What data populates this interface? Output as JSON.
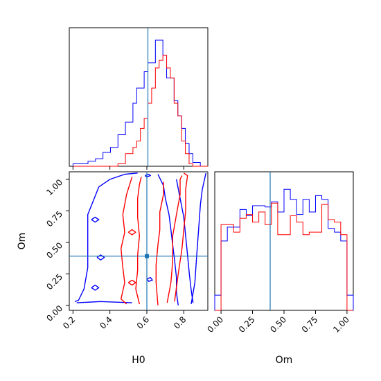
{
  "chart_data": {
    "type": "corner",
    "truth": {
      "H0": 0.6,
      "Om": 0.39
    },
    "colors": {
      "blue": "#0000ff",
      "red": "#ff0000",
      "truth": "#1f77b4"
    },
    "panels": {
      "h0_hist": {
        "type": "histogram",
        "xlim": [
          0.18,
          0.92
        ],
        "bin_edges": [
          0.2,
          0.24,
          0.28,
          0.32,
          0.36,
          0.4,
          0.44,
          0.48,
          0.52,
          0.54,
          0.56,
          0.58,
          0.6,
          0.62,
          0.64,
          0.66,
          0.68,
          0.7,
          0.72,
          0.74,
          0.76,
          0.78,
          0.8,
          0.82,
          0.84,
          0.88,
          0.92
        ],
        "series": [
          {
            "color": "blue",
            "counts": [
              0.02,
              0.02,
              0.04,
              0.06,
              0.11,
              0.15,
              0.25,
              0.35,
              0.5,
              0.62,
              0.62,
              0.75,
              0.82,
              0.82,
              1.0,
              1.0,
              0.88,
              0.7,
              0.7,
              0.52,
              0.4,
              0.3,
              0.18,
              0.1,
              0.03,
              0.0
            ]
          },
          {
            "color": "red",
            "counts": [
              0,
              0,
              0,
              0,
              0,
              0,
              0.02,
              0.1,
              0.15,
              0.2,
              0.3,
              0.38,
              0.5,
              0.62,
              0.78,
              0.84,
              0.88,
              0.78,
              0.7,
              0.5,
              0.4,
              0.2,
              0.1,
              0.02,
              0,
              0
            ]
          }
        ]
      },
      "om_hist": {
        "type": "histogram",
        "xlim": [
          -0.05,
          1.05
        ],
        "ticks": [
          "0.00",
          "0.25",
          "0.50",
          "0.75",
          "1.00"
        ],
        "bin_edges": [
          -0.05,
          0.0,
          0.05,
          0.1,
          0.15,
          0.2,
          0.25,
          0.3,
          0.35,
          0.4,
          0.45,
          0.5,
          0.55,
          0.6,
          0.65,
          0.7,
          0.75,
          0.8,
          0.85,
          0.9,
          0.95,
          1.0,
          1.05
        ],
        "series": [
          {
            "color": "blue",
            "counts": [
              0.12,
              0.55,
              0.66,
              0.66,
              0.8,
              0.75,
              0.83,
              0.83,
              0.82,
              0.86,
              0.78,
              0.96,
              0.88,
              0.76,
              0.88,
              0.78,
              0.91,
              0.88,
              0.65,
              0.62,
              0.55,
              0.12
            ]
          },
          {
            "color": "red",
            "counts": [
              0,
              0.68,
              0.68,
              0.62,
              0.73,
              0.76,
              0.7,
              0.78,
              0.68,
              0.85,
              0.6,
              0.6,
              0.75,
              0.7,
              0.6,
              0.62,
              0.62,
              0.84,
              0.72,
              0.7,
              0.6,
              0
            ]
          }
        ]
      },
      "joint": {
        "type": "contour",
        "xlabel": "H0",
        "ylabel": "Om",
        "xlim": [
          0.18,
          0.93
        ],
        "ylim": [
          -0.04,
          1.06
        ],
        "xticks": [
          "0.2",
          "0.4",
          "0.6",
          "0.8"
        ],
        "yticks": [
          "0.00",
          "0.25",
          "0.50",
          "0.75",
          "1.00"
        ],
        "contours": [
          {
            "color": "blue",
            "points": [
              [
                0.21,
                0.03
              ],
              [
                0.23,
                0.04
              ],
              [
                0.26,
                0.13
              ],
              [
                0.28,
                0.3
              ],
              [
                0.28,
                0.48
              ],
              [
                0.28,
                0.62
              ],
              [
                0.28,
                0.72
              ],
              [
                0.31,
                0.83
              ],
              [
                0.34,
                0.94
              ],
              [
                0.4,
                1.0
              ],
              [
                0.48,
                1.04
              ],
              [
                0.55,
                1.05
              ]
            ]
          },
          {
            "color": "blue",
            "points": [
              [
                0.22,
                0.02
              ],
              [
                0.35,
                0.03
              ],
              [
                0.52,
                0.02
              ]
            ]
          },
          {
            "color": "blue",
            "points": [
              [
                0.66,
                1.04
              ],
              [
                0.69,
                0.95
              ],
              [
                0.7,
                0.85
              ],
              [
                0.72,
                0.72
              ],
              [
                0.73,
                0.6
              ],
              [
                0.74,
                0.48
              ],
              [
                0.75,
                0.36
              ],
              [
                0.76,
                0.22
              ],
              [
                0.76,
                0.1
              ],
              [
                0.77,
                0.0
              ]
            ]
          },
          {
            "color": "blue",
            "points": [
              [
                0.76,
                1.0
              ],
              [
                0.78,
                0.85
              ],
              [
                0.8,
                0.7
              ],
              [
                0.81,
                0.55
              ],
              [
                0.82,
                0.4
              ],
              [
                0.83,
                0.25
              ],
              [
                0.84,
                0.12
              ],
              [
                0.85,
                0.02
              ]
            ]
          },
          {
            "color": "blue",
            "points": [
              [
                0.84,
                0.01
              ],
              [
                0.86,
                0.18
              ],
              [
                0.87,
                0.4
              ],
              [
                0.88,
                0.6
              ],
              [
                0.89,
                0.8
              ],
              [
                0.9,
                0.92
              ],
              [
                0.92,
                1.05
              ]
            ]
          },
          {
            "color": "blue",
            "points": [
              [
                0.3,
                0.68
              ],
              [
                0.32,
                0.7
              ],
              [
                0.34,
                0.68
              ],
              [
                0.32,
                0.66
              ],
              [
                0.3,
                0.68
              ]
            ]
          },
          {
            "color": "blue",
            "points": [
              [
                0.33,
                0.38
              ],
              [
                0.35,
                0.4
              ],
              [
                0.37,
                0.38
              ],
              [
                0.35,
                0.36
              ],
              [
                0.33,
                0.38
              ]
            ]
          },
          {
            "color": "blue",
            "points": [
              [
                0.3,
                0.14
              ],
              [
                0.32,
                0.16
              ],
              [
                0.34,
                0.14
              ],
              [
                0.32,
                0.12
              ],
              [
                0.3,
                0.14
              ]
            ]
          },
          {
            "color": "blue",
            "points": [
              [
                0.59,
                1.03
              ],
              [
                0.61,
                1.04
              ],
              [
                0.62,
                1.03
              ],
              [
                0.6,
                1.02
              ],
              [
                0.59,
                1.03
              ]
            ]
          },
          {
            "color": "blue",
            "points": [
              [
                0.6,
                0.21
              ],
              [
                0.62,
                0.22
              ],
              [
                0.63,
                0.2
              ],
              [
                0.61,
                0.19
              ],
              [
                0.6,
                0.21
              ]
            ]
          },
          {
            "color": "red",
            "points": [
              [
                0.52,
                1.02
              ],
              [
                0.49,
                0.88
              ],
              [
                0.47,
                0.72
              ],
              [
                0.48,
                0.58
              ],
              [
                0.46,
                0.45
              ],
              [
                0.47,
                0.3
              ],
              [
                0.48,
                0.18
              ],
              [
                0.46,
                0.05
              ],
              [
                0.49,
                0.01
              ]
            ]
          },
          {
            "color": "red",
            "points": [
              [
                0.56,
                0.01
              ],
              [
                0.54,
                0.13
              ],
              [
                0.55,
                0.28
              ],
              [
                0.55,
                0.4
              ],
              [
                0.56,
                0.55
              ],
              [
                0.55,
                0.7
              ],
              [
                0.55,
                0.85
              ],
              [
                0.56,
                0.96
              ],
              [
                0.57,
                1.02
              ]
            ]
          },
          {
            "color": "red",
            "points": [
              [
                0.66,
                0.0
              ],
              [
                0.65,
                0.18
              ],
              [
                0.65,
                0.32
              ],
              [
                0.66,
                0.48
              ],
              [
                0.67,
                0.6
              ],
              [
                0.67,
                0.74
              ],
              [
                0.69,
                0.88
              ],
              [
                0.69,
                0.98
              ]
            ]
          },
          {
            "color": "red",
            "points": [
              [
                0.71,
                0.02
              ],
              [
                0.73,
                0.18
              ],
              [
                0.74,
                0.35
              ],
              [
                0.74,
                0.55
              ],
              [
                0.76,
                0.72
              ],
              [
                0.78,
                0.88
              ],
              [
                0.78,
                1.0
              ],
              [
                0.79,
                1.03
              ]
            ]
          },
          {
            "color": "red",
            "points": [
              [
                0.75,
                0.03
              ],
              [
                0.77,
                0.25
              ],
              [
                0.79,
                0.45
              ],
              [
                0.8,
                0.6
              ],
              [
                0.81,
                0.75
              ],
              [
                0.81,
                0.92
              ],
              [
                0.82,
                1.03
              ],
              [
                0.8,
                1.05
              ]
            ]
          },
          {
            "color": "red",
            "points": [
              [
                0.5,
                0.58
              ],
              [
                0.52,
                0.6
              ],
              [
                0.54,
                0.58
              ],
              [
                0.52,
                0.56
              ],
              [
                0.5,
                0.58
              ]
            ]
          },
          {
            "color": "red",
            "points": [
              [
                0.5,
                0.18
              ],
              [
                0.52,
                0.2
              ],
              [
                0.54,
                0.18
              ],
              [
                0.52,
                0.16
              ],
              [
                0.5,
                0.18
              ]
            ]
          }
        ],
        "truth_marker": {
          "H0": 0.6,
          "Om": 0.39
        }
      }
    }
  }
}
